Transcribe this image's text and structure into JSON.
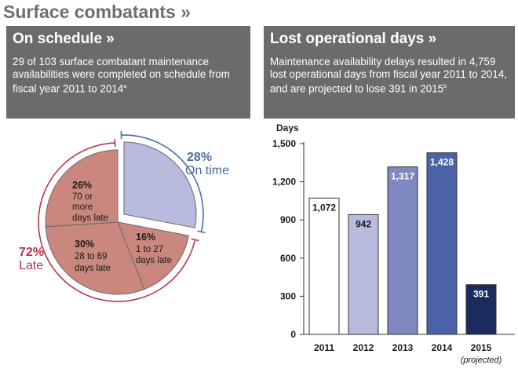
{
  "header": {
    "title": "Surface combatants »"
  },
  "left_panel": {
    "title": "On schedule »",
    "text": "29 of 103 surface combatant maintenance availabilities were completed on schedule from fiscal year 2011 to 2014",
    "footnote": "a"
  },
  "right_panel": {
    "title": "Lost operational days »",
    "text": "Maintenance availability delays resulted in 4,759 lost operational days from fiscal year 2011 to 2014, and are projected to lose 391 in 2015",
    "footnote": "b"
  },
  "chart_data": [
    {
      "type": "pie",
      "title": "On schedule",
      "slices": [
        {
          "name": "On time",
          "value": 28,
          "pct_label": "28%",
          "label": "On time",
          "color": "#b9bbde"
        },
        {
          "name": "1 to 27 days late",
          "value": 16,
          "pct_label": "16%",
          "line1": "1 to 27",
          "line2": "days late",
          "color": "#c9877e"
        },
        {
          "name": "28 to 69 days late",
          "value": 30,
          "pct_label": "30%",
          "line1": "28 to 69",
          "line2": "days late",
          "color": "#c9877e"
        },
        {
          "name": "70 or more days late",
          "value": 26,
          "pct_label": "26%",
          "line1": "70 or",
          "line2": "more",
          "line3": "days late",
          "color": "#c9877e"
        }
      ],
      "annotations": {
        "late_pct": "72%",
        "late_label": "Late",
        "ontime_pct": "28%",
        "ontime_label": "On time",
        "late_color": "#b8344f",
        "ontime_color": "#4a6ca5"
      }
    },
    {
      "type": "bar",
      "ylabel": "Days",
      "categories": [
        "2011",
        "2012",
        "2013",
        "2014",
        "2015"
      ],
      "category_note": "(projected)",
      "values": [
        1072,
        942,
        1317,
        1428,
        391
      ],
      "value_labels": [
        "1,072",
        "942",
        "1,317",
        "1,428",
        "391"
      ],
      "colors": [
        "#ffffff",
        "#b9bbde",
        "#7d89bf",
        "#4b62a8",
        "#1c2b5e"
      ],
      "label_colors": [
        "#1a1a1a",
        "#1a1a1a",
        "#ffffff",
        "#ffffff",
        "#ffffff"
      ],
      "ylim": [
        0,
        1500
      ],
      "yticks": [
        0,
        300,
        600,
        900,
        1200,
        1500
      ],
      "ytick_labels": [
        "0",
        "300",
        "600",
        "900",
        "1,200",
        "1,500"
      ]
    }
  ]
}
